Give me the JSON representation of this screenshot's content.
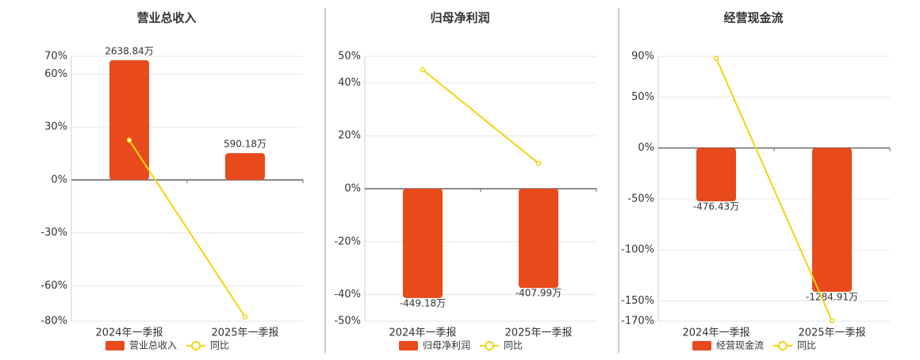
{
  "chart_data": [
    {
      "type": "bar",
      "title": "营业总收入",
      "categories": [
        "2024年一季报",
        "2025年一季报"
      ],
      "series": [
        {
          "name": "营业总收入",
          "color": "#e84a1c",
          "axis": "y2",
          "values": [
            2638.84,
            590.18
          ],
          "value_labels": [
            "2638.84万",
            "590.18万"
          ]
        },
        {
          "name": "同比",
          "type": "line",
          "color": "#f2d40e",
          "values": [
            22.5,
            -77.6
          ]
        }
      ],
      "ylim": [
        -80,
        70
      ],
      "yticks": [
        {
          "value": 70,
          "label": "70%"
        },
        {
          "value": 60,
          "label": "60%"
        },
        {
          "value": 30,
          "label": "30%"
        },
        {
          "value": 0,
          "label": "0%"
        },
        {
          "value": -30,
          "label": "-30%"
        },
        {
          "value": -60,
          "label": "-60%"
        },
        {
          "value": -80,
          "label": "-80%"
        }
      ],
      "y2lim": [
        -3112,
        2723
      ],
      "grid": true
    },
    {
      "type": "bar",
      "title": "归母净利润",
      "categories": [
        "2024年一季报",
        "2025年一季报"
      ],
      "series": [
        {
          "name": "归母净利润",
          "color": "#e84a1c",
          "axis": "y2",
          "values": [
            -449.18,
            -407.99
          ],
          "value_labels": [
            "-449.18万",
            "-407.99万"
          ]
        },
        {
          "name": "同比",
          "type": "line",
          "color": "#f2d40e",
          "values": [
            44.9,
            9.6
          ]
        }
      ],
      "ylim": [
        -50,
        50
      ],
      "yticks": [
        {
          "value": 50,
          "label": "50%"
        },
        {
          "value": 40,
          "label": "40%"
        },
        {
          "value": 20,
          "label": "20%"
        },
        {
          "value": 0,
          "label": "0%"
        },
        {
          "value": -20,
          "label": "-20%"
        },
        {
          "value": -40,
          "label": "-40%"
        },
        {
          "value": -50,
          "label": "-50%"
        }
      ],
      "y2lim": [
        -544,
        544
      ],
      "grid": true
    },
    {
      "type": "bar",
      "title": "经营现金流",
      "categories": [
        "2024年一季报",
        "2025年一季报"
      ],
      "series": [
        {
          "name": "经营现金流",
          "color": "#e84a1c",
          "axis": "y2",
          "values": [
            -476.43,
            -1284.91
          ],
          "value_labels": [
            "-476.43万",
            "-1284.91万"
          ]
        },
        {
          "name": "同比",
          "type": "line",
          "color": "#f2d40e",
          "values": [
            88,
            -169.6
          ]
        }
      ],
      "ylim": [
        -170,
        90
      ],
      "yticks": [
        {
          "value": 90,
          "label": "90%"
        },
        {
          "value": 50,
          "label": "50%"
        },
        {
          "value": 0,
          "label": "0%"
        },
        {
          "value": -50,
          "label": "-50%"
        },
        {
          "value": -100,
          "label": "-100%"
        },
        {
          "value": -150,
          "label": "-150%"
        },
        {
          "value": -170,
          "label": "-170%"
        }
      ],
      "y2lim": [
        -1547,
        819
      ],
      "grid": true
    }
  ]
}
